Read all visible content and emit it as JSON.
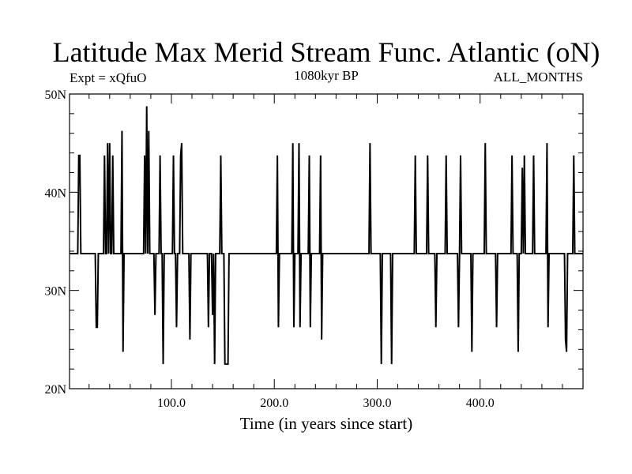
{
  "chart_data": {
    "type": "line",
    "title": "Latitude Max Merid Stream Func. Atlantic (oN)",
    "subtitle_left": "Expt = xQfuO",
    "subtitle_center": "1080kyr BP",
    "subtitle_right": "ALL_MONTHS",
    "xlabel": "Time (in years since start)",
    "ylabel": "",
    "xlim": [
      1,
      500
    ],
    "ylim": [
      20,
      50
    ],
    "x_ticks": [
      100,
      200,
      300,
      400
    ],
    "x_tick_labels": [
      "100.0",
      "200.0",
      "300.0",
      "400.0"
    ],
    "y_ticks": [
      20,
      30,
      40,
      50
    ],
    "y_tick_labels": [
      "20N",
      "30N",
      "40N",
      "50N"
    ],
    "baseline": 33.75,
    "series": [
      {
        "values": [
          [
            1,
            33.75
          ],
          [
            9,
            33.75
          ],
          [
            10,
            43.75
          ],
          [
            11,
            43.75
          ],
          [
            12,
            33.75
          ],
          [
            26,
            33.75
          ],
          [
            27,
            26.25
          ],
          [
            28,
            26.25
          ],
          [
            29,
            33.75
          ],
          [
            34,
            33.75
          ],
          [
            35,
            43.75
          ],
          [
            36,
            33.75
          ],
          [
            37,
            33.75
          ],
          [
            38,
            45
          ],
          [
            39,
            33.75
          ],
          [
            40,
            45
          ],
          [
            41,
            33.75
          ],
          [
            42,
            33.75
          ],
          [
            43,
            43.75
          ],
          [
            44,
            33.75
          ],
          [
            51,
            33.75
          ],
          [
            52,
            46.25
          ],
          [
            53,
            23.75
          ],
          [
            54,
            33.75
          ],
          [
            73,
            33.75
          ],
          [
            74,
            43.75
          ],
          [
            75,
            33.75
          ],
          [
            76,
            48.75
          ],
          [
            77,
            33.75
          ],
          [
            78,
            46.25
          ],
          [
            79,
            33.75
          ],
          [
            83,
            33.75
          ],
          [
            84,
            27.5
          ],
          [
            85,
            33.75
          ],
          [
            88,
            33.75
          ],
          [
            89,
            43.75
          ],
          [
            90,
            33.75
          ],
          [
            91,
            33.75
          ],
          [
            92,
            22.5
          ],
          [
            93,
            33.75
          ],
          [
            98,
            33.75
          ],
          [
            99,
            33.75
          ],
          [
            101,
            33.75
          ],
          [
            102,
            43.75
          ],
          [
            103,
            33.75
          ],
          [
            104,
            33.75
          ],
          [
            105,
            26.25
          ],
          [
            106,
            33.75
          ],
          [
            108,
            33.75
          ],
          [
            109,
            43.75
          ],
          [
            110,
            45
          ],
          [
            111,
            33.75
          ],
          [
            117,
            33.75
          ],
          [
            118,
            25
          ],
          [
            119,
            33.75
          ],
          [
            135,
            33.75
          ],
          [
            136,
            26.25
          ],
          [
            137,
            33.75
          ],
          [
            139,
            33.75
          ],
          [
            140,
            27.5
          ],
          [
            141,
            33.75
          ],
          [
            142,
            22.5
          ],
          [
            143,
            33.75
          ],
          [
            147,
            33.75
          ],
          [
            148,
            43.75
          ],
          [
            149,
            33.75
          ],
          [
            151,
            33.75
          ],
          [
            152,
            22.5
          ],
          [
            155,
            22.5
          ],
          [
            156,
            33.75
          ],
          [
            202,
            33.75
          ],
          [
            203,
            43.75
          ],
          [
            204,
            26.25
          ],
          [
            205,
            33.75
          ],
          [
            217,
            33.75
          ],
          [
            218,
            45
          ],
          [
            219,
            26.25
          ],
          [
            220,
            33.75
          ],
          [
            223,
            33.75
          ],
          [
            224,
            45
          ],
          [
            225,
            26.25
          ],
          [
            226,
            33.75
          ],
          [
            233,
            33.75
          ],
          [
            234,
            43.75
          ],
          [
            235,
            26.25
          ],
          [
            236,
            33.75
          ],
          [
            244,
            33.75
          ],
          [
            245,
            43.75
          ],
          [
            246,
            25
          ],
          [
            247,
            33.75
          ],
          [
            292,
            33.75
          ],
          [
            293,
            45
          ],
          [
            294,
            33.75
          ],
          [
            303,
            33.75
          ],
          [
            304,
            22.5
          ],
          [
            305,
            33.75
          ],
          [
            313,
            33.75
          ],
          [
            314,
            22.5
          ],
          [
            315,
            33.75
          ],
          [
            336,
            33.75
          ],
          [
            337,
            43.75
          ],
          [
            338,
            33.75
          ],
          [
            348,
            33.75
          ],
          [
            349,
            43.75
          ],
          [
            350,
            33.75
          ],
          [
            356,
            33.75
          ],
          [
            357,
            26.25
          ],
          [
            358,
            33.75
          ],
          [
            366,
            33.75
          ],
          [
            367,
            43.75
          ],
          [
            368,
            33.75
          ],
          [
            378,
            33.75
          ],
          [
            379,
            26.25
          ],
          [
            380,
            33.75
          ],
          [
            381,
            43.75
          ],
          [
            382,
            33.75
          ],
          [
            391,
            33.75
          ],
          [
            392,
            23.75
          ],
          [
            393,
            33.75
          ],
          [
            404,
            33.75
          ],
          [
            405,
            45
          ],
          [
            406,
            33.75
          ],
          [
            415,
            33.75
          ],
          [
            416,
            26.25
          ],
          [
            417,
            33.75
          ],
          [
            430,
            33.75
          ],
          [
            431,
            43.75
          ],
          [
            432,
            33.75
          ],
          [
            436,
            33.75
          ],
          [
            437,
            23.75
          ],
          [
            438,
            33.75
          ],
          [
            440,
            33.75
          ],
          [
            441,
            42.5
          ],
          [
            442,
            33.75
          ],
          [
            443,
            43.75
          ],
          [
            444,
            33.75
          ],
          [
            451,
            33.75
          ],
          [
            452,
            43.75
          ],
          [
            453,
            33.75
          ],
          [
            464,
            33.75
          ],
          [
            465,
            45
          ],
          [
            466,
            26.25
          ],
          [
            467,
            33.75
          ],
          [
            482,
            33.75
          ],
          [
            483,
            25
          ],
          [
            484,
            23.75
          ],
          [
            485,
            33.75
          ],
          [
            490,
            33.75
          ],
          [
            491,
            43.75
          ],
          [
            492,
            33.75
          ],
          [
            500,
            33.75
          ]
        ]
      }
    ]
  }
}
